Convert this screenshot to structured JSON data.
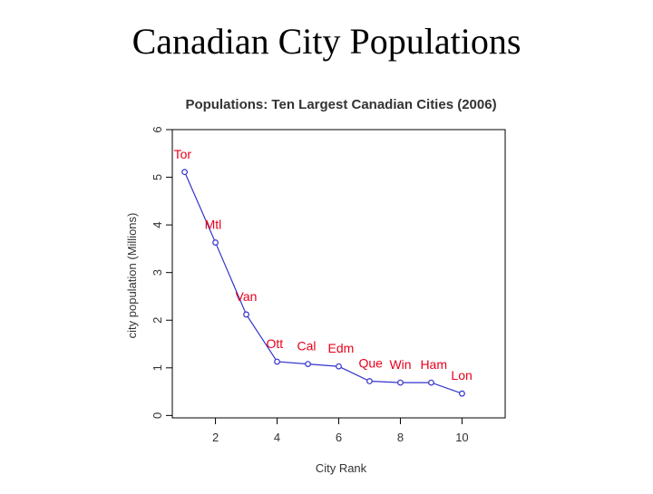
{
  "slide": {
    "title": "Canadian City Populations"
  },
  "chart_data": {
    "type": "line",
    "title": "Populations: Ten Largest Canadian Cities (2006)",
    "xlabel": "City Rank",
    "ylabel": "city population (Millions)",
    "xlim": [
      0.6,
      11.4
    ],
    "ylim": [
      -0.05,
      6.0
    ],
    "xticks": [
      2,
      4,
      6,
      8,
      10
    ],
    "yticks": [
      0,
      1,
      2,
      3,
      4,
      5,
      6
    ],
    "grid": false,
    "series": [
      {
        "name": "population",
        "x": [
          1,
          2,
          3,
          4,
          5,
          6,
          7,
          8,
          9,
          10
        ],
        "values": [
          5.11,
          3.63,
          2.12,
          1.13,
          1.08,
          1.03,
          0.72,
          0.69,
          0.69,
          0.46
        ],
        "labels": [
          "Tor",
          "Mtl",
          "Van",
          "Ott",
          "Cal",
          "Edm",
          "Que",
          "Win",
          "Ham",
          "Lon"
        ]
      }
    ],
    "colors": {
      "line": "#3333cc",
      "label": "#e8001c",
      "axis": "#000000",
      "text": "#333333"
    }
  }
}
